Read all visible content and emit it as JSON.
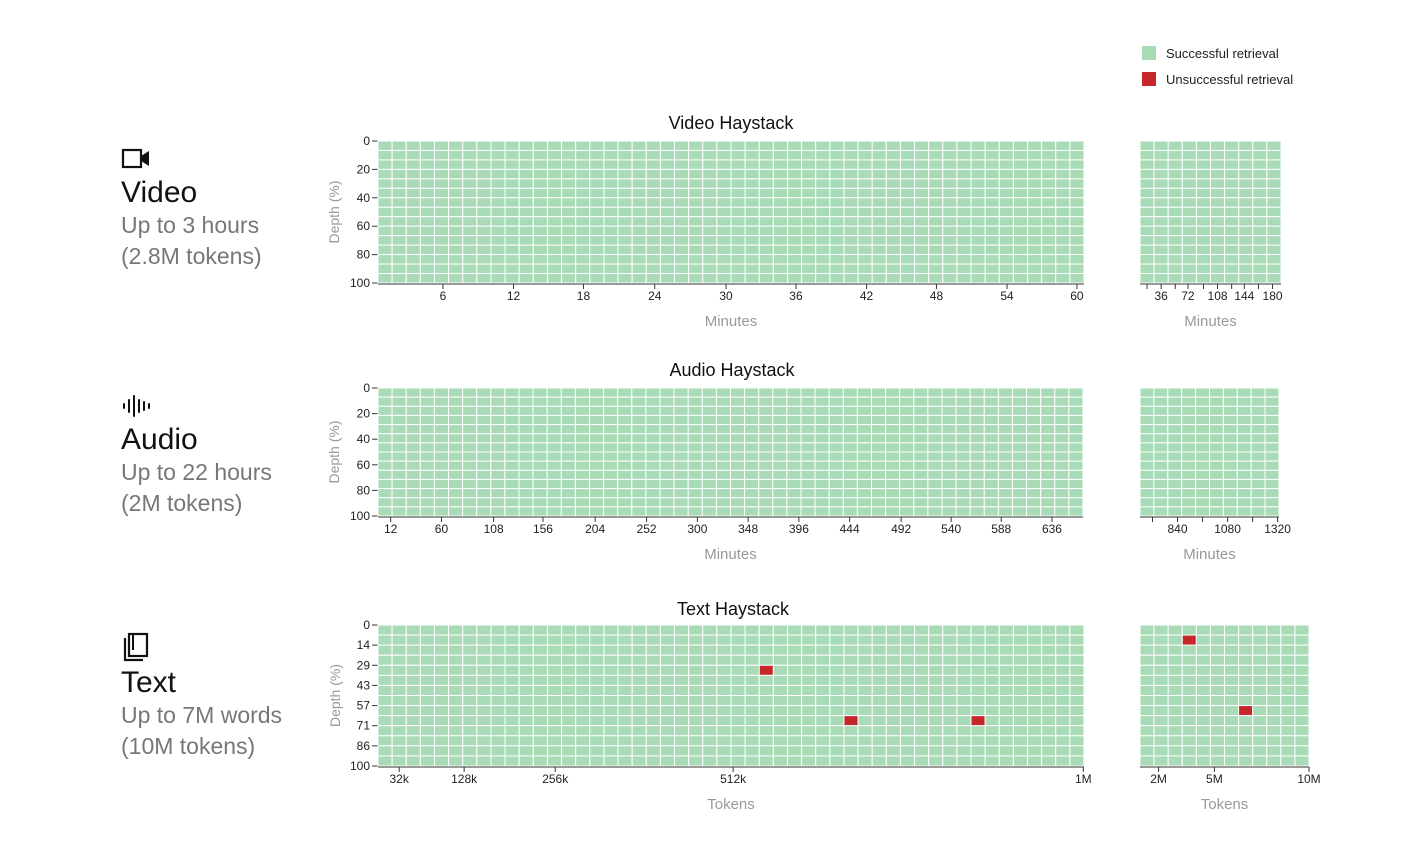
{
  "colors": {
    "success": "#a8dbb6",
    "failure": "#c5272b",
    "grid": "#ffffff",
    "axis": "#333333",
    "axis_title": "#999999"
  },
  "legend": {
    "success_label": "Successful retrieval",
    "failure_label": "Unsuccessful retrieval"
  },
  "rows": [
    {
      "name": "Video",
      "sub1": "Up to 3 hours",
      "sub2": "(2.8M tokens)",
      "icon": "video-camera-icon"
    },
    {
      "name": "Audio",
      "sub1": "Up to 22 hours",
      "sub2": "(2M tokens)",
      "icon": "audio-waveform-icon"
    },
    {
      "name": "Text",
      "sub1": "Up to 7M words",
      "sub2": "(10M tokens)",
      "icon": "book-icon"
    }
  ],
  "chart_data": [
    {
      "type": "heatmap",
      "title": "Video Haystack",
      "ylabel": "Depth (%)",
      "yticks": [
        "0",
        "20",
        "40",
        "60",
        "80",
        "100"
      ],
      "panels": [
        {
          "xlabel": "Minutes",
          "cols": 50,
          "rows": 15,
          "xticks": [
            "6",
            "12",
            "18",
            "24",
            "30",
            "36",
            "42",
            "48",
            "54",
            "60"
          ],
          "xtick_fracs": [
            0.092,
            0.192,
            0.291,
            0.392,
            0.493,
            0.592,
            0.692,
            0.791,
            0.891,
            0.99
          ],
          "failures": []
        },
        {
          "xlabel": "Minutes",
          "cols": 10,
          "rows": 15,
          "xticks": [
            "36",
            "72",
            "108",
            "144",
            "180"
          ],
          "xtick_fracs": [
            0.15,
            0.34,
            0.55,
            0.74,
            0.94
          ],
          "minor_tick_fracs": [
            0.05,
            0.25,
            0.45,
            0.65,
            0.84
          ],
          "failures": []
        }
      ]
    },
    {
      "type": "heatmap",
      "title": "Audio Haystack",
      "ylabel": "Depth (%)",
      "yticks": [
        "0",
        "20",
        "40",
        "60",
        "80",
        "100"
      ],
      "panels": [
        {
          "xlabel": "Minutes",
          "cols": 50,
          "rows": 14,
          "xticks": [
            "12",
            "60",
            "108",
            "156",
            "204",
            "252",
            "300",
            "348",
            "396",
            "444",
            "492",
            "540",
            "588",
            "636"
          ],
          "xtick_fracs": [
            0.018,
            0.09,
            0.164,
            0.234,
            0.308,
            0.381,
            0.453,
            0.525,
            0.597,
            0.669,
            0.742,
            0.813,
            0.884,
            0.956
          ],
          "failures": []
        },
        {
          "xlabel": "Minutes",
          "cols": 10,
          "rows": 14,
          "xticks": [
            "840",
            "1080",
            "1320"
          ],
          "xtick_fracs": [
            0.27,
            0.63,
            0.99
          ],
          "minor_tick_fracs": [
            0.09,
            0.45,
            0.81
          ],
          "failures": []
        }
      ]
    },
    {
      "type": "heatmap",
      "title": "Text Haystack",
      "ylabel": "Depth (%)",
      "yticks": [
        "0",
        "14",
        "29",
        "43",
        "57",
        "71",
        "86",
        "100"
      ],
      "panels": [
        {
          "xlabel": "Tokens",
          "cols": 50,
          "rows": 14,
          "xticks": [
            "32k",
            "128k",
            "256k",
            "512k",
            "1M"
          ],
          "xtick_fracs": [
            0.03,
            0.122,
            0.251,
            0.503,
            0.999
          ],
          "failures": [
            [
              27,
              4
            ],
            [
              33,
              9
            ],
            [
              42,
              9
            ]
          ]
        },
        {
          "xlabel": "Tokens",
          "cols": 12,
          "rows": 14,
          "xticks": [
            "2M",
            "5M",
            "10M"
          ],
          "xtick_fracs": [
            0.11,
            0.44,
            1.0
          ],
          "failures": [
            [
              3,
              1
            ],
            [
              7,
              8
            ]
          ]
        }
      ]
    }
  ]
}
